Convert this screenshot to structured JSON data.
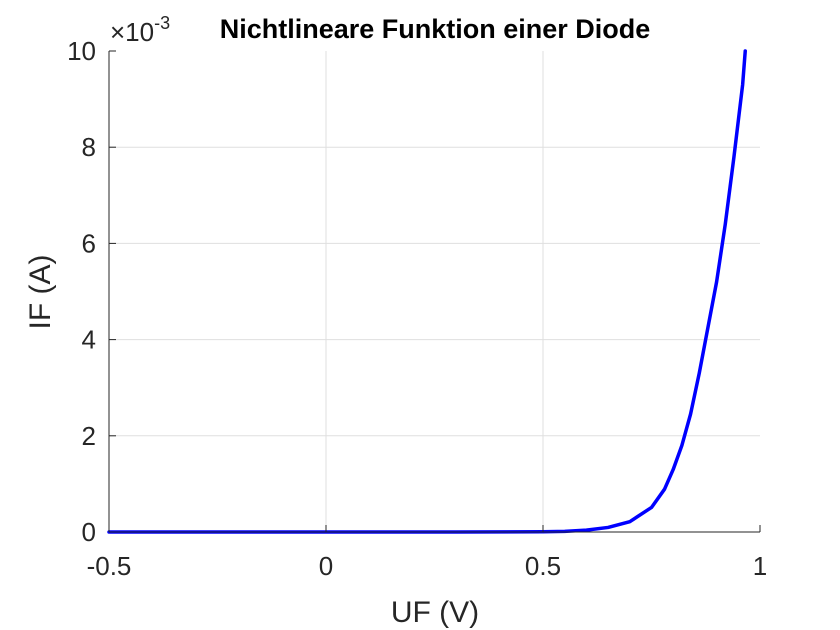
{
  "chart_data": {
    "type": "line",
    "title": "Nichtlineare Funktion einer Diode",
    "xlabel": "UF (V)",
    "ylabel": "IF (A)",
    "xlim": [
      -0.5,
      1
    ],
    "ylim": [
      0,
      0.01
    ],
    "x_ticks": [
      -0.5,
      0,
      0.5,
      1
    ],
    "x_tick_labels": [
      "-0.5",
      "0",
      "0.5",
      "1"
    ],
    "y_ticks": [
      0,
      0.002,
      0.004,
      0.006,
      0.008,
      0.01
    ],
    "y_tick_labels": [
      "0",
      "2",
      "4",
      "6",
      "8",
      "10"
    ],
    "y_exponent": {
      "base": "×10",
      "power": "-3"
    },
    "grid": true,
    "colors": {
      "line": "#0000ff",
      "grid": "#dfdfdf",
      "axis": "#262626"
    },
    "series": [
      {
        "x": [
          -0.5,
          -0.3,
          -0.1,
          0.1,
          0.3,
          0.5,
          0.55,
          0.6,
          0.65,
          0.7,
          0.75,
          0.78,
          0.8,
          0.82,
          0.84,
          0.86,
          0.88,
          0.9,
          0.92,
          0.94,
          0.96,
          0.966
        ],
        "values": [
          0,
          0,
          0,
          0,
          0,
          4e-06,
          1.3e-05,
          4e-05,
          9.5e-05,
          0.000215,
          0.00051,
          0.00089,
          0.0013,
          0.0018,
          0.00245,
          0.0033,
          0.00425,
          0.0052,
          0.0064,
          0.0078,
          0.0093,
          0.01
        ]
      }
    ]
  }
}
